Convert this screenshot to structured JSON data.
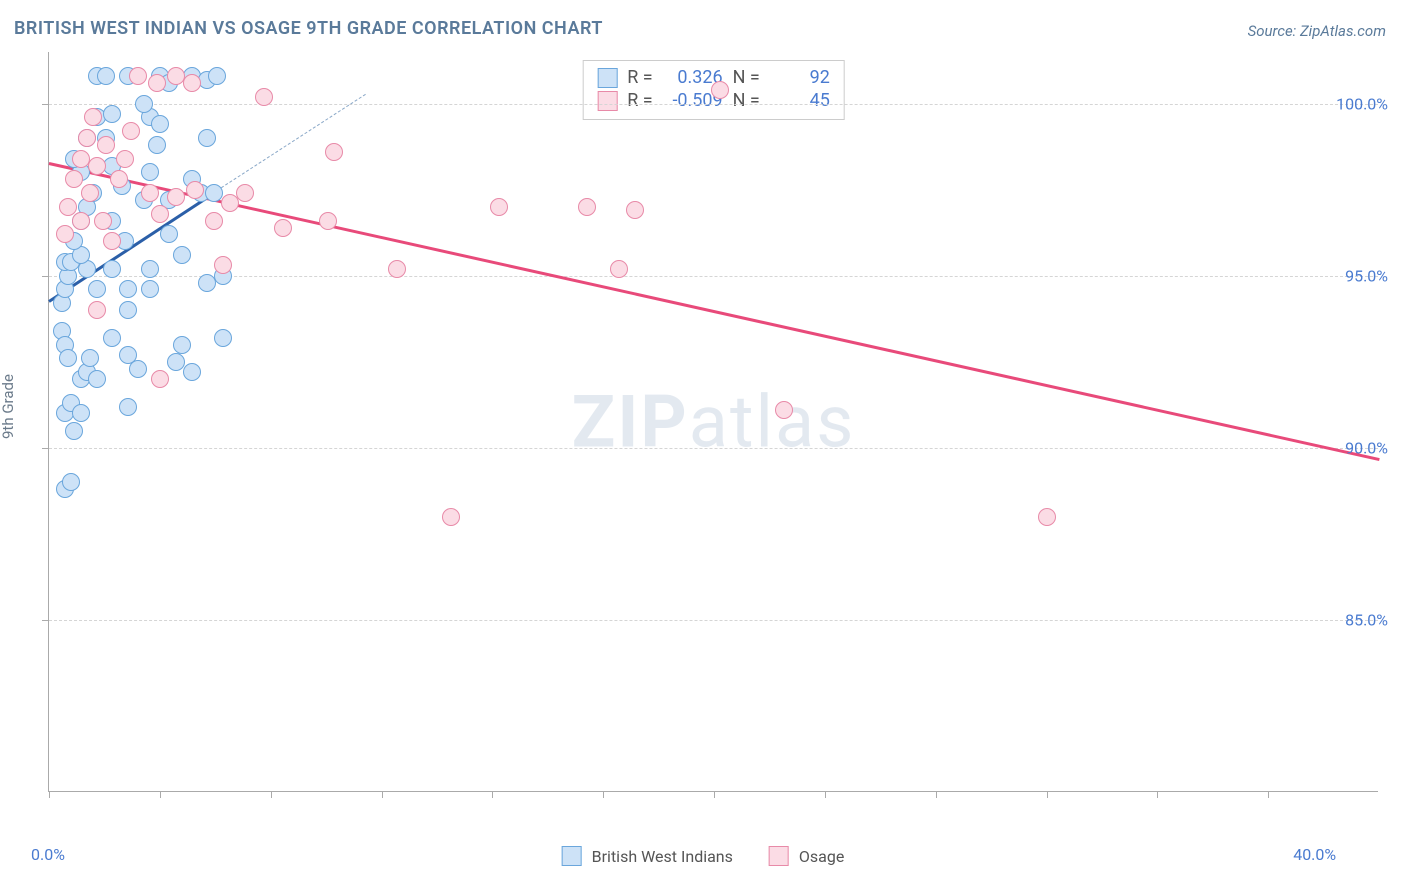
{
  "title": "BRITISH WEST INDIAN VS OSAGE 9TH GRADE CORRELATION CHART",
  "source_label": "Source: ZipAtlas.com",
  "ylabel": "9th Grade",
  "watermark": {
    "bold": "ZIP",
    "rest": "atlas"
  },
  "chart": {
    "type": "scatter",
    "xlim": [
      0,
      42
    ],
    "ylim": [
      80,
      101.5
    ],
    "xticks": [
      0,
      40
    ],
    "xtick_labels": [
      "0.0%",
      "40.0%"
    ],
    "xtick_marks": [
      0,
      3.5,
      7,
      10.5,
      14,
      17.5,
      21,
      24.5,
      28,
      31.5,
      35,
      38.5
    ],
    "yticks": [
      85,
      90,
      95,
      100
    ],
    "ytick_labels": [
      "85.0%",
      "90.0%",
      "95.0%",
      "100.0%"
    ],
    "grid_color": "#d5d5d5",
    "background_color": "#ffffff",
    "marker_radius": 9,
    "marker_border": 1.5,
    "series": [
      {
        "name": "British West Indians",
        "fill": "#cde2f7",
        "stroke": "#6aa6dc",
        "R": "0.326",
        "N": "92",
        "trend": {
          "x1": 0,
          "y1": 94.3,
          "x2": 5.3,
          "y2": 97.5,
          "color": "#2b5fa8",
          "width": 3
        },
        "trend_ext": {
          "x1": 5.3,
          "y1": 97.5,
          "x2": 10,
          "y2": 100.3,
          "color": "#8aa8c8"
        },
        "points": [
          [
            0.4,
            94.2
          ],
          [
            0.5,
            94.6
          ],
          [
            0.6,
            95.0
          ],
          [
            0.5,
            95.4
          ],
          [
            0.7,
            95.4
          ],
          [
            0.4,
            93.4
          ],
          [
            0.5,
            93.0
          ],
          [
            0.6,
            92.6
          ],
          [
            0.5,
            91.0
          ],
          [
            0.7,
            91.3
          ],
          [
            0.5,
            88.8
          ],
          [
            0.7,
            89.0
          ],
          [
            0.8,
            90.5
          ],
          [
            1.0,
            91.0
          ],
          [
            1.0,
            92.0
          ],
          [
            1.2,
            92.2
          ],
          [
            1.3,
            92.6
          ],
          [
            1.5,
            92.0
          ],
          [
            1.5,
            94.6
          ],
          [
            1.2,
            95.2
          ],
          [
            1.0,
            95.6
          ],
          [
            0.8,
            96.0
          ],
          [
            1.0,
            96.6
          ],
          [
            1.2,
            97.0
          ],
          [
            1.4,
            97.4
          ],
          [
            1.0,
            98.0
          ],
          [
            0.8,
            98.4
          ],
          [
            1.2,
            99.0
          ],
          [
            1.5,
            99.6
          ],
          [
            1.5,
            100.8
          ],
          [
            1.8,
            100.8
          ],
          [
            2.5,
            100.8
          ],
          [
            2.0,
            99.7
          ],
          [
            1.8,
            99.0
          ],
          [
            2.0,
            98.2
          ],
          [
            2.3,
            97.6
          ],
          [
            2.0,
            96.6
          ],
          [
            2.4,
            96.0
          ],
          [
            2.0,
            95.2
          ],
          [
            2.5,
            94.6
          ],
          [
            2.5,
            94.0
          ],
          [
            2.0,
            93.2
          ],
          [
            2.5,
            92.7
          ],
          [
            2.8,
            92.3
          ],
          [
            2.5,
            91.2
          ],
          [
            3.2,
            94.6
          ],
          [
            3.2,
            95.2
          ],
          [
            3.0,
            97.2
          ],
          [
            3.2,
            98.0
          ],
          [
            3.4,
            98.8
          ],
          [
            3.2,
            99.6
          ],
          [
            3.0,
            100.0
          ],
          [
            3.5,
            100.8
          ],
          [
            3.8,
            100.6
          ],
          [
            3.5,
            99.4
          ],
          [
            3.8,
            97.2
          ],
          [
            3.8,
            96.2
          ],
          [
            4.2,
            95.6
          ],
          [
            4.2,
            93.0
          ],
          [
            4.0,
            92.5
          ],
          [
            4.5,
            92.2
          ],
          [
            4.5,
            97.8
          ],
          [
            4.8,
            97.4
          ],
          [
            4.5,
            100.8
          ],
          [
            5.0,
            100.7
          ],
          [
            5.3,
            100.8
          ],
          [
            5.0,
            99.0
          ],
          [
            5.2,
            97.4
          ],
          [
            5.5,
            95.0
          ],
          [
            5.5,
            93.2
          ],
          [
            5.0,
            94.8
          ]
        ]
      },
      {
        "name": "Osage",
        "fill": "#fbdce5",
        "stroke": "#e88aa8",
        "R": "-0.509",
        "N": "45",
        "trend": {
          "x1": 0,
          "y1": 98.3,
          "x2": 42,
          "y2": 89.7,
          "color": "#e84a7a",
          "width": 2.5
        },
        "points": [
          [
            0.5,
            96.2
          ],
          [
            0.6,
            97.0
          ],
          [
            0.8,
            97.8
          ],
          [
            1.0,
            98.4
          ],
          [
            1.2,
            99.0
          ],
          [
            1.4,
            99.6
          ],
          [
            1.0,
            96.6
          ],
          [
            1.3,
            97.4
          ],
          [
            1.5,
            98.2
          ],
          [
            1.8,
            98.8
          ],
          [
            1.7,
            96.6
          ],
          [
            2.0,
            96.0
          ],
          [
            1.5,
            94.0
          ],
          [
            2.2,
            97.8
          ],
          [
            2.4,
            98.4
          ],
          [
            2.6,
            99.2
          ],
          [
            2.8,
            100.8
          ],
          [
            3.4,
            100.6
          ],
          [
            4.0,
            100.8
          ],
          [
            4.5,
            100.6
          ],
          [
            3.2,
            97.4
          ],
          [
            3.5,
            96.8
          ],
          [
            3.5,
            92.0
          ],
          [
            4.0,
            97.3
          ],
          [
            4.6,
            97.5
          ],
          [
            5.2,
            96.6
          ],
          [
            5.7,
            97.1
          ],
          [
            5.5,
            95.3
          ],
          [
            6.8,
            100.2
          ],
          [
            6.2,
            97.4
          ],
          [
            7.4,
            96.4
          ],
          [
            9.0,
            98.6
          ],
          [
            8.8,
            96.6
          ],
          [
            11.0,
            95.2
          ],
          [
            12.7,
            88.0
          ],
          [
            14.2,
            97.0
          ],
          [
            17.0,
            97.0
          ],
          [
            18.0,
            95.2
          ],
          [
            18.5,
            96.9
          ],
          [
            21.2,
            100.4
          ],
          [
            23.2,
            91.1
          ],
          [
            31.5,
            88.0
          ]
        ]
      }
    ]
  },
  "stats_box": {
    "labels": {
      "R": "R =",
      "N": "N ="
    }
  },
  "legend": {
    "items": [
      "British West Indians",
      "Osage"
    ]
  }
}
